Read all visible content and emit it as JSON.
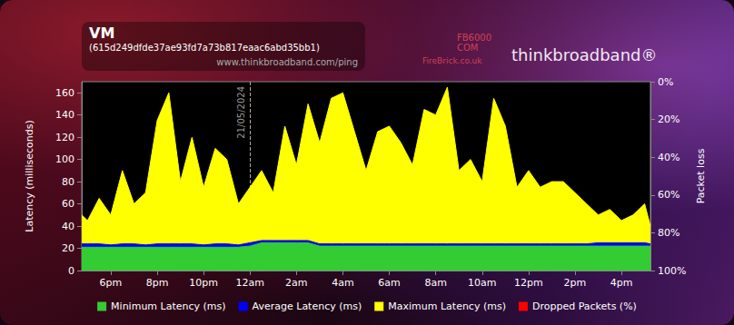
{
  "chart_data": {
    "type": "line",
    "title": "VM",
    "subtitle": "(615d249dfde37ae93fd7a73b817eaac6abd35bb1)",
    "source": "www.thinkbroadband.com/ping",
    "logo_texts": [
      "FB6000",
      "COM",
      "FireBrick.co.uk",
      "thinkbroadband®"
    ],
    "y_label": "Latency (milliseconds)",
    "y2_label": "Packet loss",
    "x": [
      16.75,
      17,
      17.5,
      18,
      18.5,
      19,
      19.5,
      20,
      20.5,
      21,
      21.5,
      22,
      22.5,
      23,
      23.5,
      24,
      24.5,
      25,
      25.5,
      26,
      26.5,
      27,
      27.5,
      28,
      28.5,
      29,
      29.5,
      30,
      30.5,
      31,
      31.5,
      32,
      32.5,
      33,
      33.5,
      34,
      34.5,
      35,
      35.5,
      36,
      36.5,
      37,
      37.5,
      38,
      38.5,
      39,
      39.5,
      40,
      40.5,
      41,
      41.25
    ],
    "xlim": [
      16.75,
      41.25
    ],
    "xticks": [
      {
        "value": 18,
        "label": "6pm"
      },
      {
        "value": 20,
        "label": "8pm"
      },
      {
        "value": 22,
        "label": "10pm"
      },
      {
        "value": 24,
        "label": "12am"
      },
      {
        "value": 26,
        "label": "2am"
      },
      {
        "value": 28,
        "label": "4am"
      },
      {
        "value": 30,
        "label": "6am"
      },
      {
        "value": 32,
        "label": "8am"
      },
      {
        "value": 34,
        "label": "10am"
      },
      {
        "value": 36,
        "label": "12pm"
      },
      {
        "value": 38,
        "label": "2pm"
      },
      {
        "value": 40,
        "label": "4pm"
      }
    ],
    "ylim": [
      0,
      170
    ],
    "yticks": [
      0,
      20,
      40,
      60,
      80,
      100,
      120,
      140,
      160
    ],
    "y2lim": [
      100,
      0
    ],
    "y2ticks": [
      {
        "value": 0,
        "label": "0%"
      },
      {
        "value": 20,
        "label": "20%"
      },
      {
        "value": 40,
        "label": "40%"
      },
      {
        "value": 60,
        "label": "60%"
      },
      {
        "value": 80,
        "label": "80%"
      },
      {
        "value": 100,
        "label": "100%"
      }
    ],
    "grid": false,
    "stacked": false,
    "legend": "bottom",
    "annotations": [
      {
        "x": 24,
        "text": "21/05/2024"
      }
    ],
    "series": [
      {
        "name": "Minimum Latency (ms)",
        "color": "#33cc33",
        "type": "area",
        "values": [
          21,
          21,
          21,
          21,
          21,
          21,
          21,
          21,
          21,
          21,
          21,
          21,
          21,
          21,
          21,
          22,
          25,
          25,
          25,
          25,
          25,
          22,
          22,
          22,
          22,
          22,
          22,
          22,
          22,
          22,
          22,
          22,
          22,
          22,
          22,
          22,
          22,
          22,
          22,
          22,
          22,
          22,
          22,
          22,
          22,
          22,
          22,
          22,
          22,
          22,
          22
        ]
      },
      {
        "name": "Average Latency (ms)",
        "color": "#0000ff",
        "type": "area",
        "values": [
          24,
          24,
          24,
          23,
          24,
          24,
          23,
          24,
          24,
          24,
          24,
          23,
          24,
          24,
          23,
          25,
          27,
          27,
          27,
          27,
          27,
          24,
          24,
          24,
          24,
          24,
          24,
          24,
          24,
          24,
          24,
          24,
          24,
          24,
          24,
          24,
          24,
          24,
          24,
          24,
          24,
          24,
          24,
          24,
          24,
          25,
          25,
          25,
          25,
          25,
          24
        ]
      },
      {
        "name": "Maximum Latency (ms)",
        "color": "#ffff00",
        "type": "area",
        "values": [
          50,
          45,
          65,
          50,
          90,
          60,
          70,
          135,
          160,
          80,
          120,
          75,
          110,
          100,
          60,
          75,
          90,
          70,
          130,
          95,
          150,
          115,
          155,
          160,
          125,
          90,
          125,
          130,
          115,
          95,
          145,
          140,
          165,
          90,
          100,
          80,
          155,
          130,
          75,
          90,
          75,
          80,
          80,
          70,
          60,
          50,
          55,
          45,
          50,
          60,
          40
        ]
      },
      {
        "name": "Dropped Packets (%)",
        "color": "#ff0000",
        "type": "bar",
        "axis": "y2",
        "values": [
          0,
          0,
          0,
          0,
          0,
          0,
          0,
          0,
          0,
          0,
          0,
          0,
          0,
          0,
          0,
          0,
          0,
          0,
          0,
          0,
          0,
          0,
          0,
          0,
          0,
          0,
          0,
          0,
          0,
          0,
          0,
          0,
          0,
          0,
          0,
          0,
          0,
          0,
          0,
          0,
          0,
          0,
          0,
          0,
          0,
          0,
          0,
          0,
          0,
          0,
          0
        ]
      }
    ]
  }
}
